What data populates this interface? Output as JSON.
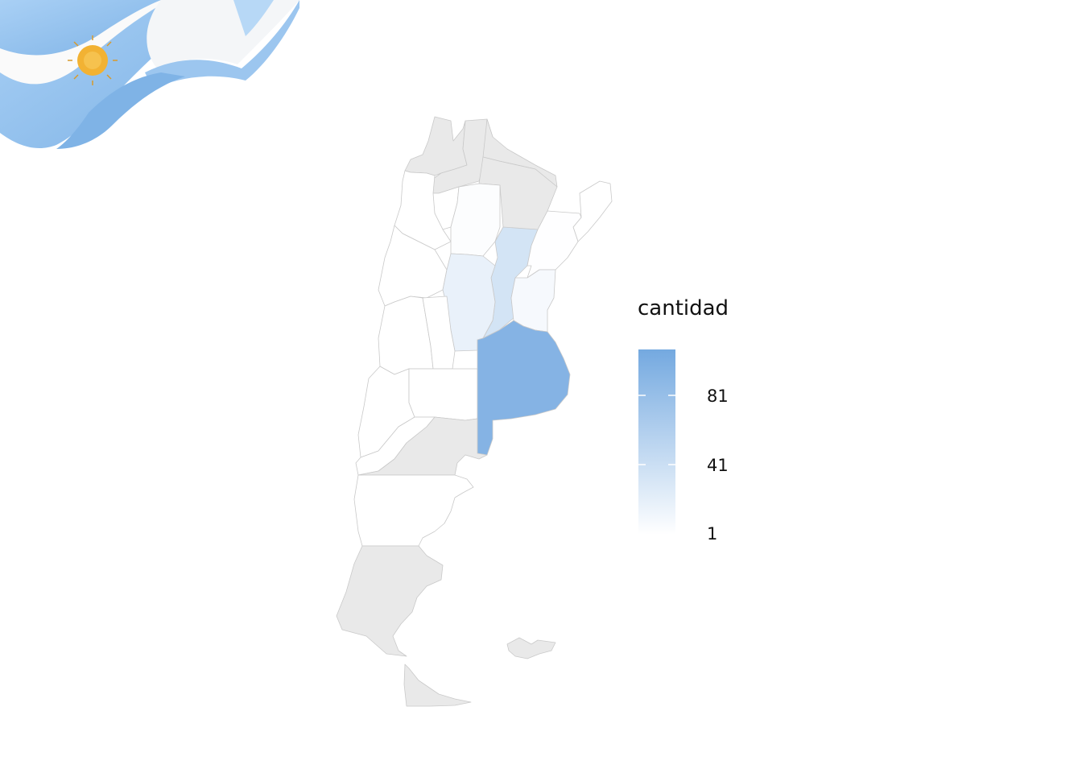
{
  "legend": {
    "title": "cantidad",
    "ticks": [
      "81",
      "41",
      "1"
    ],
    "color_low": "#ffffff",
    "color_high": "#74a9e0"
  },
  "map": {
    "no_data_color": "#e9e9e9",
    "border_color": "#c9c9c9",
    "provinces": [
      {
        "name": "Jujuy",
        "value": null
      },
      {
        "name": "Salta",
        "value": null
      },
      {
        "name": "Formosa",
        "value": null
      },
      {
        "name": "Chaco",
        "value": null
      },
      {
        "name": "Misiones",
        "value": 1
      },
      {
        "name": "Tucumán",
        "value": 1
      },
      {
        "name": "Catamarca",
        "value": 1
      },
      {
        "name": "Santiago del Estero",
        "value": 3
      },
      {
        "name": "La Rioja",
        "value": 1
      },
      {
        "name": "Santa Fe",
        "value": 35
      },
      {
        "name": "Corrientes",
        "value": 2
      },
      {
        "name": "Córdoba",
        "value": 18
      },
      {
        "name": "Entre Ríos",
        "value": 8
      },
      {
        "name": "San Juan",
        "value": 1
      },
      {
        "name": "San Luis",
        "value": 1
      },
      {
        "name": "Mendoza",
        "value": 1
      },
      {
        "name": "La Pampa",
        "value": 1
      },
      {
        "name": "Buenos Aires",
        "value": 95
      },
      {
        "name": "Neuquén",
        "value": 1
      },
      {
        "name": "Río Negro",
        "value": null
      },
      {
        "name": "Chubut",
        "value": 1
      },
      {
        "name": "Santa Cruz",
        "value": null
      },
      {
        "name": "Tierra del Fuego",
        "value": null
      },
      {
        "name": "Islas Malvinas",
        "value": null
      }
    ]
  },
  "decoration": {
    "flag_colors": {
      "celeste": "#8cbfee",
      "white": "#fafafa",
      "sun": "#f2b233"
    }
  }
}
